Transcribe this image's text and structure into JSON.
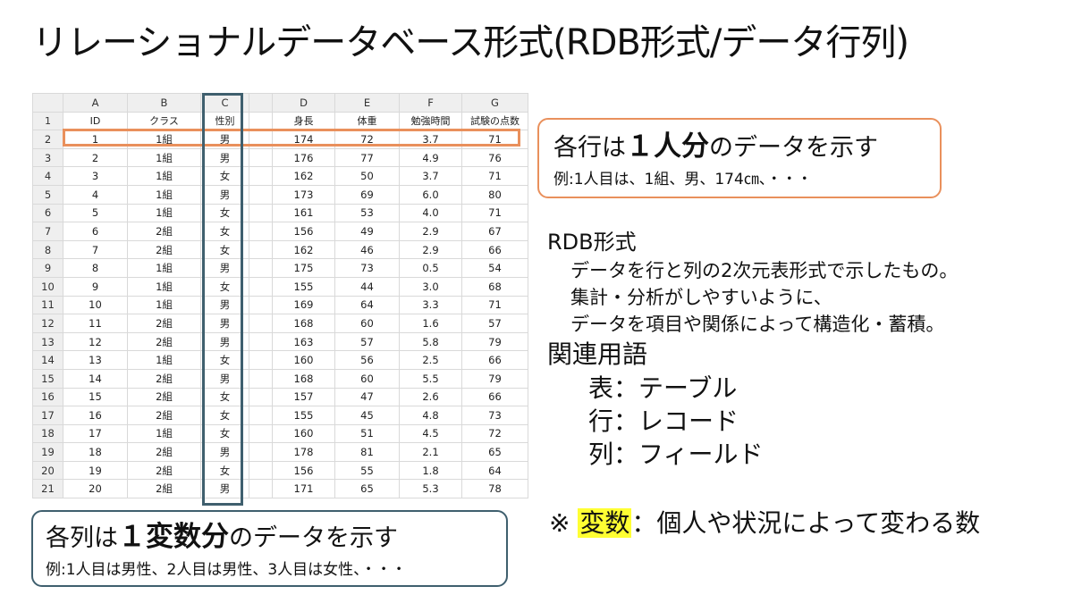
{
  "title": "リレーショナルデータベース形式(RDB形式/データ行列)",
  "table": {
    "column_letters": [
      "A",
      "B",
      "C",
      "",
      "D",
      "E",
      "F",
      "G"
    ],
    "field_names": [
      "ID",
      "クラス",
      "性別",
      "",
      "身長",
      "体重",
      "勉強時間",
      "試験の点数"
    ],
    "rows": [
      [
        "1",
        "1組",
        "男",
        "174",
        "72",
        "3.7",
        "71"
      ],
      [
        "2",
        "1組",
        "男",
        "176",
        "77",
        "4.9",
        "76"
      ],
      [
        "3",
        "1組",
        "女",
        "162",
        "50",
        "3.7",
        "71"
      ],
      [
        "4",
        "1組",
        "男",
        "173",
        "69",
        "6.0",
        "80"
      ],
      [
        "5",
        "1組",
        "女",
        "161",
        "53",
        "4.0",
        "71"
      ],
      [
        "6",
        "2組",
        "女",
        "156",
        "49",
        "2.9",
        "67"
      ],
      [
        "7",
        "2組",
        "女",
        "162",
        "46",
        "2.9",
        "66"
      ],
      [
        "8",
        "1組",
        "男",
        "175",
        "73",
        "0.5",
        "54"
      ],
      [
        "9",
        "1組",
        "女",
        "155",
        "44",
        "3.0",
        "68"
      ],
      [
        "10",
        "1組",
        "男",
        "169",
        "64",
        "3.3",
        "71"
      ],
      [
        "11",
        "2組",
        "男",
        "168",
        "60",
        "1.6",
        "57"
      ],
      [
        "12",
        "2組",
        "男",
        "163",
        "57",
        "5.8",
        "79"
      ],
      [
        "13",
        "1組",
        "女",
        "160",
        "56",
        "2.5",
        "66"
      ],
      [
        "14",
        "2組",
        "男",
        "168",
        "60",
        "5.5",
        "79"
      ],
      [
        "15",
        "2組",
        "女",
        "157",
        "47",
        "2.6",
        "66"
      ],
      [
        "16",
        "2組",
        "女",
        "155",
        "45",
        "4.8",
        "73"
      ],
      [
        "17",
        "1組",
        "女",
        "160",
        "51",
        "4.5",
        "72"
      ],
      [
        "18",
        "2組",
        "男",
        "178",
        "81",
        "2.1",
        "65"
      ],
      [
        "19",
        "2組",
        "女",
        "156",
        "55",
        "1.8",
        "64"
      ],
      [
        "20",
        "2組",
        "男",
        "171",
        "65",
        "5.3",
        "78"
      ]
    ]
  },
  "row_callout": {
    "main_prefix": "各行は",
    "main_emphasis": "１人分",
    "main_suffix": "のデータを示す",
    "example": "例:1人目は、1組、男、174㎝、・・・"
  },
  "column_callout": {
    "main_prefix": "各列は",
    "main_emphasis": "１変数分",
    "main_suffix": "のデータを示す",
    "example": "例:1人目は男性、2人目は男性、3人目は女性、・・・"
  },
  "rdb": {
    "heading": "RDB形式",
    "description": [
      "データを行と列の2次元表形式で示したもの。",
      "集計・分析がしやすいように、",
      "データを項目や関係によって構造化・蓄積。"
    ],
    "terms_heading": "関連用語",
    "terms": [
      {
        "term": "表",
        "sep": "：",
        "meaning": "テーブル"
      },
      {
        "term": "行",
        "sep": "：",
        "meaning": "レコード"
      },
      {
        "term": "列",
        "sep": "：",
        "meaning": "フィールド"
      }
    ]
  },
  "note": {
    "mark": "※ ",
    "highlighted": "変数",
    "rest": "：個人や状況によって変わる数"
  },
  "colors": {
    "row_highlight": "#e9905c",
    "column_highlight": "#3f5f6e",
    "note_marker": "#ffff33"
  }
}
